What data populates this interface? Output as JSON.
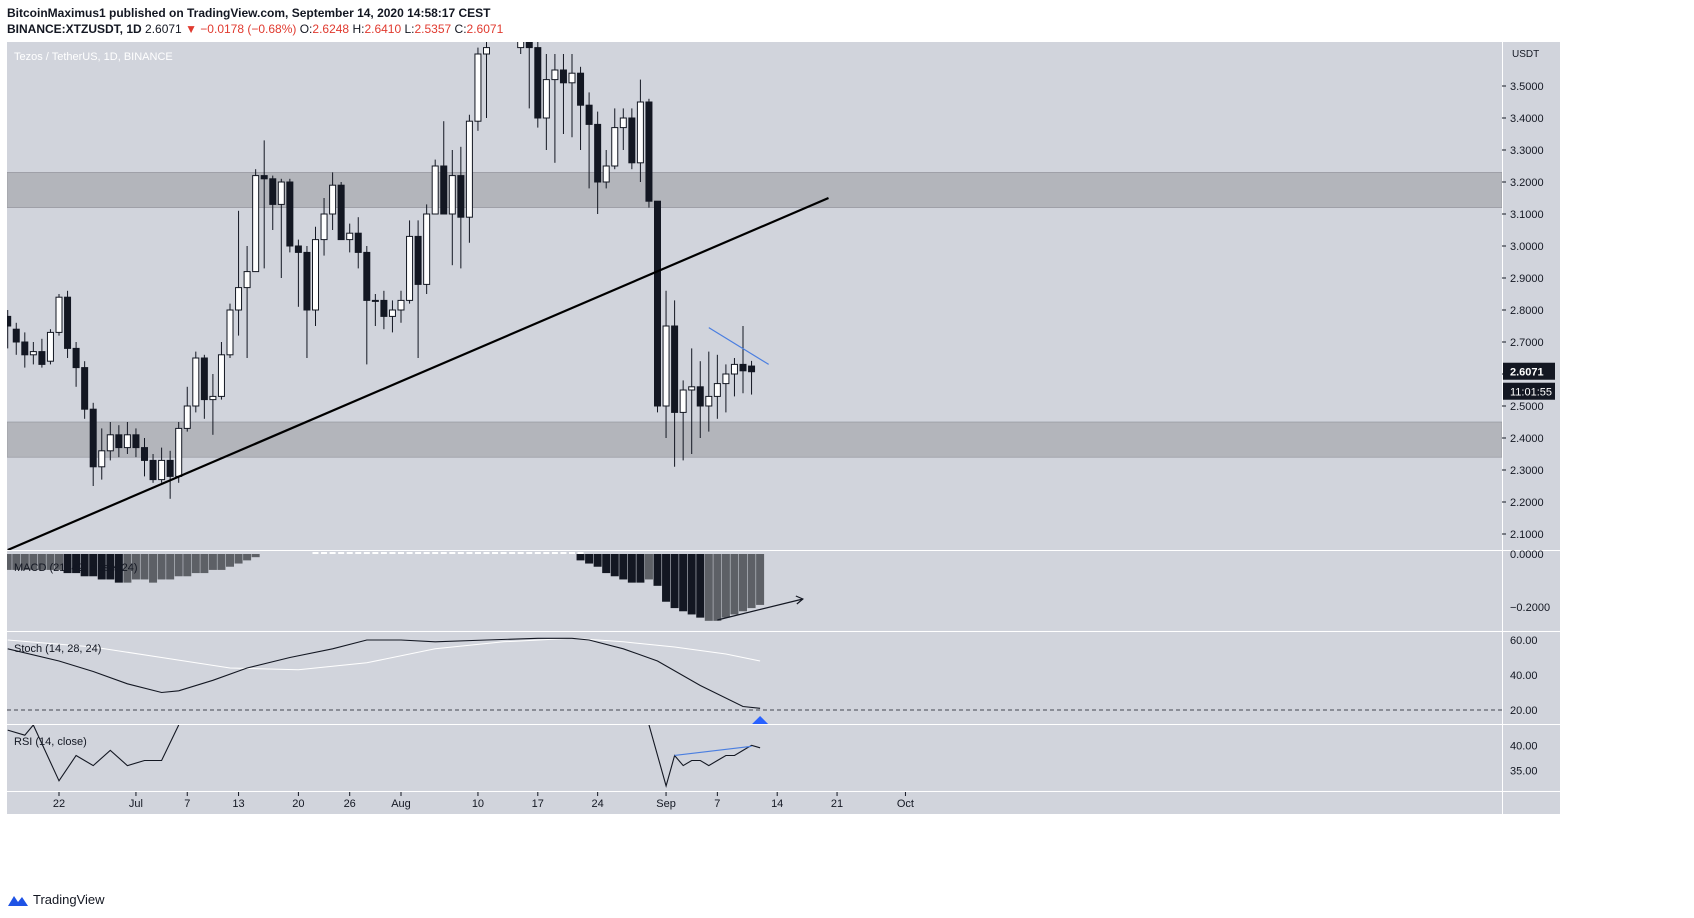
{
  "header": {
    "publisher_line": "BitcoinMaximus1 published on TradingView.com, September 14, 2020 14:58:17 CEST",
    "symbol": "BINANCE:XTZUSDT, 1D",
    "price": "2.6071",
    "change_arrow": "▼",
    "change": "−0.0178 (−0.68%)",
    "o_label": "O:",
    "o_value": "2.6248",
    "h_label": "H:",
    "h_value": "2.6410",
    "l_label": "L:",
    "l_value": "2.5357",
    "c_label": "C:",
    "c_value": "2.6071"
  },
  "chart_title": "Tezos / TetherUS, 1D, BINANCE",
  "currency": "USDT",
  "last_price_label": "2.6071",
  "countdown_label": "11:01:55",
  "footer_brand": "TradingView",
  "colors": {
    "panel_bg": "#d1d4dc",
    "zone": "#b3b5bb",
    "candle_down": "#131722",
    "candle_up": "#ffffff",
    "trendline": "#000000",
    "blue_line": "#4a7ee0",
    "red": "#e03a2f"
  },
  "chart_data": [
    {
      "type": "candlestick",
      "title": "Tezos / TetherUS, 1D, BINANCE",
      "ylabel": "USDT",
      "ylim": [
        2.05,
        3.55
      ],
      "y_ticks": [
        2.1,
        2.2,
        2.3,
        2.4,
        2.5,
        2.6,
        2.7,
        2.8,
        2.9,
        3.0,
        3.1,
        3.2,
        3.3,
        3.4,
        3.5
      ],
      "y_tick_labels": [
        "2.1000",
        "2.2000",
        "2.3000",
        "2.4000",
        "2.5000",
        "2.6000",
        "2.7000",
        "2.8000",
        "2.9000",
        "3.0000",
        "3.1000",
        "3.2000",
        "3.3000",
        "3.4000",
        "3.5000"
      ],
      "x_tick_labels": [
        "22",
        "Jul",
        "7",
        "13",
        "20",
        "26",
        "Aug",
        "10",
        "17",
        "24",
        "Sep",
        "7",
        "14",
        "21",
        "Oct"
      ],
      "x_tick_days": [
        0,
        9,
        15,
        21,
        28,
        34,
        40,
        49,
        56,
        63,
        71,
        77,
        84,
        91,
        99
      ],
      "zones": [
        [
          3.12,
          3.23
        ],
        [
          2.34,
          2.45
        ]
      ],
      "trendline": [
        [
          -6,
          2.05
        ],
        [
          90,
          3.15
        ]
      ],
      "blue_line": [
        [
          76,
          2.745
        ],
        [
          83,
          2.63
        ]
      ],
      "candles": [
        [
          -6,
          2.78,
          2.75,
          2.8,
          2.68
        ],
        [
          -5,
          2.74,
          2.7,
          2.76,
          2.66
        ],
        [
          -4,
          2.7,
          2.66,
          2.73,
          2.62
        ],
        [
          -3,
          2.66,
          2.67,
          2.7,
          2.63
        ],
        [
          -2,
          2.67,
          2.63,
          2.71,
          2.62
        ],
        [
          -1,
          2.64,
          2.73,
          2.74,
          2.63
        ],
        [
          0,
          2.73,
          2.84,
          2.85,
          2.72
        ],
        [
          1,
          2.84,
          2.68,
          2.86,
          2.65
        ],
        [
          2,
          2.68,
          2.62,
          2.7,
          2.56
        ],
        [
          3,
          2.62,
          2.49,
          2.64,
          2.46
        ],
        [
          4,
          2.49,
          2.31,
          2.51,
          2.25
        ],
        [
          5,
          2.31,
          2.36,
          2.43,
          2.27
        ],
        [
          6,
          2.36,
          2.41,
          2.45,
          2.33
        ],
        [
          7,
          2.41,
          2.37,
          2.44,
          2.34
        ],
        [
          8,
          2.37,
          2.41,
          2.45,
          2.35
        ],
        [
          9,
          2.41,
          2.37,
          2.43,
          2.34
        ],
        [
          10,
          2.37,
          2.33,
          2.4,
          2.28
        ],
        [
          11,
          2.33,
          2.27,
          2.35,
          2.26
        ],
        [
          12,
          2.27,
          2.33,
          2.37,
          2.26
        ],
        [
          13,
          2.33,
          2.28,
          2.36,
          2.21
        ],
        [
          14,
          2.28,
          2.43,
          2.45,
          2.26
        ],
        [
          15,
          2.43,
          2.5,
          2.56,
          2.42
        ],
        [
          16,
          2.5,
          2.65,
          2.67,
          2.48
        ],
        [
          17,
          2.65,
          2.52,
          2.66,
          2.46
        ],
        [
          18,
          2.52,
          2.53,
          2.6,
          2.41
        ],
        [
          19,
          2.53,
          2.66,
          2.7,
          2.52
        ],
        [
          20,
          2.66,
          2.8,
          2.82,
          2.65
        ],
        [
          21,
          2.8,
          2.87,
          3.11,
          2.72
        ],
        [
          22,
          2.87,
          2.92,
          3.0,
          2.65
        ],
        [
          23,
          2.92,
          3.22,
          3.24,
          2.92
        ],
        [
          24,
          3.22,
          3.21,
          3.33,
          2.93
        ],
        [
          25,
          3.21,
          3.13,
          3.22,
          3.05
        ],
        [
          26,
          3.13,
          3.2,
          3.21,
          2.9
        ],
        [
          27,
          3.2,
          3.0,
          3.21,
          2.98
        ],
        [
          28,
          3.0,
          2.98,
          3.02,
          2.81
        ],
        [
          29,
          2.98,
          2.8,
          3.0,
          2.65
        ],
        [
          30,
          2.8,
          3.02,
          3.06,
          2.75
        ],
        [
          31,
          3.02,
          3.1,
          3.15,
          2.97
        ],
        [
          32,
          3.1,
          3.19,
          3.23,
          3.05
        ],
        [
          33,
          3.19,
          3.02,
          3.2,
          3.02
        ],
        [
          34,
          3.02,
          3.04,
          3.07,
          2.98
        ],
        [
          35,
          3.04,
          2.98,
          3.09,
          2.93
        ],
        [
          36,
          2.98,
          2.83,
          3.0,
          2.63
        ],
        [
          37,
          2.83,
          2.83,
          2.85,
          2.75
        ],
        [
          38,
          2.83,
          2.78,
          2.86,
          2.74
        ],
        [
          39,
          2.78,
          2.8,
          2.83,
          2.73
        ],
        [
          40,
          2.8,
          2.83,
          2.86,
          2.76
        ],
        [
          41,
          2.83,
          3.03,
          3.08,
          2.82
        ],
        [
          42,
          3.03,
          2.88,
          3.08,
          2.65
        ],
        [
          43,
          2.88,
          3.1,
          3.13,
          2.85
        ],
        [
          44,
          3.1,
          3.25,
          3.27,
          3.1
        ],
        [
          45,
          3.25,
          3.1,
          3.39,
          3.1
        ],
        [
          46,
          3.1,
          3.22,
          3.3,
          2.94
        ],
        [
          47,
          3.22,
          3.09,
          3.31,
          2.93
        ],
        [
          48,
          3.09,
          3.39,
          3.41,
          3.01
        ],
        [
          49,
          3.39,
          3.6,
          3.62,
          3.36
        ],
        [
          50,
          3.6,
          3.62,
          3.7,
          3.4
        ],
        [
          54,
          3.62,
          3.66,
          3.7,
          3.6
        ],
        [
          55,
          3.66,
          3.62,
          3.7,
          3.43
        ],
        [
          56,
          3.62,
          3.4,
          3.64,
          3.37
        ],
        [
          57,
          3.4,
          3.52,
          3.6,
          3.3
        ],
        [
          58,
          3.52,
          3.55,
          3.6,
          3.26
        ],
        [
          59,
          3.55,
          3.51,
          3.6,
          3.35
        ],
        [
          60,
          3.51,
          3.54,
          3.6,
          3.34
        ],
        [
          61,
          3.54,
          3.44,
          3.56,
          3.3
        ],
        [
          62,
          3.44,
          3.38,
          3.48,
          3.18
        ],
        [
          63,
          3.38,
          3.2,
          3.42,
          3.1
        ],
        [
          64,
          3.2,
          3.25,
          3.3,
          3.18
        ],
        [
          65,
          3.25,
          3.37,
          3.43,
          3.24
        ],
        [
          66,
          3.37,
          3.4,
          3.43,
          3.3
        ],
        [
          67,
          3.4,
          3.26,
          3.43,
          3.24
        ],
        [
          68,
          3.26,
          3.45,
          3.52,
          3.2
        ],
        [
          69,
          3.45,
          3.14,
          3.46,
          3.12
        ],
        [
          70,
          3.14,
          2.5,
          3.14,
          2.48
        ],
        [
          71,
          2.5,
          2.75,
          2.86,
          2.4
        ],
        [
          72,
          2.75,
          2.48,
          2.83,
          2.31
        ],
        [
          73,
          2.48,
          2.55,
          2.58,
          2.33
        ],
        [
          74,
          2.55,
          2.56,
          2.68,
          2.35
        ],
        [
          75,
          2.56,
          2.5,
          2.64,
          2.4
        ],
        [
          76,
          2.5,
          2.53,
          2.67,
          2.42
        ],
        [
          77,
          2.53,
          2.57,
          2.66,
          2.46
        ],
        [
          78,
          2.57,
          2.6,
          2.63,
          2.48
        ],
        [
          79,
          2.6,
          2.63,
          2.65,
          2.53
        ],
        [
          80,
          2.63,
          2.61,
          2.75,
          2.54
        ],
        [
          81,
          2.6248,
          2.6071,
          2.641,
          2.5357
        ]
      ]
    },
    {
      "type": "bar",
      "title": "MACD (21, 42, close, 24)",
      "y_tick_labels": [
        "0.0000",
        "−0.2000"
      ],
      "ylim": [
        -0.22,
        0.0
      ],
      "histogram_left": [
        -0.05,
        -0.05,
        -0.05,
        -0.05,
        -0.05,
        -0.05,
        -0.05,
        -0.06,
        -0.06,
        -0.07,
        -0.07,
        -0.08,
        -0.08,
        -0.09,
        -0.09,
        -0.08,
        -0.08,
        -0.09,
        -0.08,
        -0.08,
        -0.07,
        -0.07,
        -0.06,
        -0.06,
        -0.05,
        -0.05,
        -0.04,
        -0.03,
        -0.02,
        -0.01
      ],
      "histogram_right": [
        -0.02,
        -0.03,
        -0.04,
        -0.06,
        -0.07,
        -0.08,
        -0.09,
        -0.09,
        -0.08,
        -0.1,
        -0.15,
        -0.17,
        -0.18,
        -0.19,
        -0.2,
        -0.21,
        -0.21,
        -0.2,
        -0.19,
        -0.18,
        -0.17,
        -0.16
      ]
    },
    {
      "type": "line",
      "title": "Stoch (14, 28, 24)",
      "y_tick_labels": [
        "60.00",
        "40.00",
        "20.00"
      ],
      "ylim": [
        12,
        60
      ],
      "k_line": [
        [
          -6,
          55
        ],
        [
          0,
          48
        ],
        [
          4,
          42
        ],
        [
          8,
          35
        ],
        [
          12,
          30
        ],
        [
          14,
          31
        ],
        [
          18,
          37
        ],
        [
          22,
          44
        ],
        [
          27,
          50
        ],
        [
          32,
          55
        ],
        [
          36,
          60
        ],
        [
          40,
          60
        ],
        [
          44,
          59
        ],
        [
          50,
          60
        ],
        [
          56,
          61
        ],
        [
          60,
          61
        ],
        [
          62,
          60
        ],
        [
          66,
          55
        ],
        [
          70,
          48
        ],
        [
          75,
          34
        ],
        [
          80,
          22
        ],
        [
          82,
          21
        ]
      ],
      "d_line": [
        [
          -6,
          60
        ],
        [
          4,
          56
        ],
        [
          12,
          50
        ],
        [
          20,
          44
        ],
        [
          28,
          43
        ],
        [
          36,
          47
        ],
        [
          44,
          55
        ],
        [
          52,
          59
        ],
        [
          60,
          61
        ],
        [
          66,
          59
        ],
        [
          72,
          56
        ],
        [
          78,
          52
        ],
        [
          82,
          48
        ]
      ],
      "dashed_level": 20
    },
    {
      "type": "line",
      "title": "RSI (14, close)",
      "y_tick_labels": [
        "40.00",
        "35.00"
      ],
      "ylim": [
        31,
        44
      ],
      "segment_left": [
        [
          -6,
          43
        ],
        [
          -4,
          42
        ],
        [
          -3,
          44
        ],
        [
          0,
          33
        ],
        [
          2,
          38
        ],
        [
          4,
          36
        ],
        [
          6,
          39
        ],
        [
          8,
          36
        ],
        [
          10,
          37
        ],
        [
          12,
          37
        ],
        [
          14,
          44
        ]
      ],
      "segment_right": [
        [
          69,
          44
        ],
        [
          71,
          32
        ],
        [
          72,
          38
        ],
        [
          73,
          36
        ],
        [
          74,
          37
        ],
        [
          75,
          37
        ],
        [
          76,
          36
        ],
        [
          77,
          37
        ],
        [
          78,
          38
        ],
        [
          79,
          38
        ],
        [
          80,
          39
        ],
        [
          81,
          40
        ],
        [
          82,
          39.5
        ]
      ],
      "blue_line": [
        [
          72,
          38
        ],
        [
          81,
          39.8
        ]
      ]
    }
  ]
}
